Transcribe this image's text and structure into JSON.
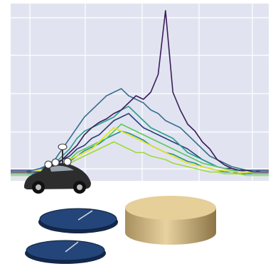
{
  "chart_data": {
    "type": "line",
    "x": [
      0,
      1,
      2,
      3,
      4,
      5,
      6,
      7,
      8,
      9,
      10,
      11,
      12,
      13,
      14,
      15,
      16,
      17,
      18,
      19,
      20,
      21,
      22,
      23,
      24,
      25,
      26,
      27,
      28,
      29,
      30,
      31,
      32,
      33,
      34,
      35
    ],
    "xlim": [
      0,
      35
    ],
    "ylim": [
      0,
      100
    ],
    "series": [
      {
        "color": "#2c3e7a",
        "values": [
          6,
          6,
          6,
          6,
          7,
          8,
          10,
          12,
          14,
          18,
          20,
          24,
          26,
          30,
          34,
          36,
          38,
          34,
          30,
          28,
          26,
          24,
          22,
          20,
          18,
          15,
          12,
          10,
          8,
          7,
          7,
          6,
          6,
          6,
          6,
          6
        ]
      },
      {
        "color": "#3a6f8f",
        "values": [
          5,
          5,
          5,
          6,
          7,
          9,
          12,
          18,
          24,
          30,
          36,
          40,
          44,
          48,
          50,
          52,
          48,
          46,
          44,
          40,
          38,
          34,
          32,
          30,
          26,
          22,
          18,
          14,
          12,
          10,
          8,
          7,
          6,
          6,
          5,
          5
        ]
      },
      {
        "color": "#2a9d8f",
        "values": [
          5,
          5,
          5,
          5,
          6,
          8,
          10,
          14,
          18,
          24,
          28,
          30,
          32,
          34,
          36,
          40,
          42,
          38,
          34,
          30,
          28,
          26,
          24,
          20,
          16,
          14,
          12,
          10,
          8,
          7,
          6,
          6,
          5,
          5,
          5,
          5
        ]
      },
      {
        "color": "#21918c",
        "values": [
          4,
          4,
          4,
          4,
          5,
          6,
          7,
          9,
          11,
          14,
          17,
          19,
          21,
          24,
          26,
          28,
          27,
          25,
          23,
          20,
          18,
          16,
          15,
          13,
          11,
          10,
          8,
          7,
          6,
          5,
          5,
          4,
          4,
          4,
          4,
          4
        ]
      },
      {
        "color": "#5cc85e",
        "values": [
          4,
          4,
          4,
          5,
          5,
          6,
          8,
          10,
          12,
          16,
          18,
          20,
          22,
          24,
          28,
          32,
          30,
          28,
          26,
          24,
          22,
          20,
          18,
          16,
          14,
          12,
          10,
          9,
          8,
          7,
          6,
          5,
          5,
          4,
          4,
          4
        ]
      },
      {
        "color": "#9ed93a",
        "values": [
          3,
          3,
          3,
          3,
          4,
          5,
          6,
          8,
          10,
          12,
          14,
          16,
          18,
          20,
          22,
          20,
          18,
          16,
          16,
          14,
          13,
          12,
          10,
          9,
          8,
          7,
          6,
          5,
          5,
          4,
          4,
          4,
          3,
          3,
          3,
          3
        ]
      },
      {
        "color": "#e8e21a",
        "values": [
          5,
          5,
          5,
          5,
          6,
          7,
          8,
          10,
          12,
          14,
          16,
          18,
          22,
          26,
          30,
          28,
          26,
          24,
          22,
          20,
          18,
          16,
          14,
          12,
          10,
          9,
          8,
          7,
          6,
          6,
          5,
          5,
          5,
          5,
          5,
          5
        ]
      },
      {
        "color": "#3b1c5a",
        "values": [
          5,
          5,
          5,
          5,
          5,
          6,
          8,
          12,
          16,
          20,
          26,
          30,
          33,
          35,
          38,
          40,
          44,
          48,
          46,
          50,
          60,
          96,
          50,
          40,
          32,
          28,
          22,
          18,
          12,
          9,
          7,
          6,
          6,
          5,
          5,
          5
        ]
      }
    ]
  }
}
